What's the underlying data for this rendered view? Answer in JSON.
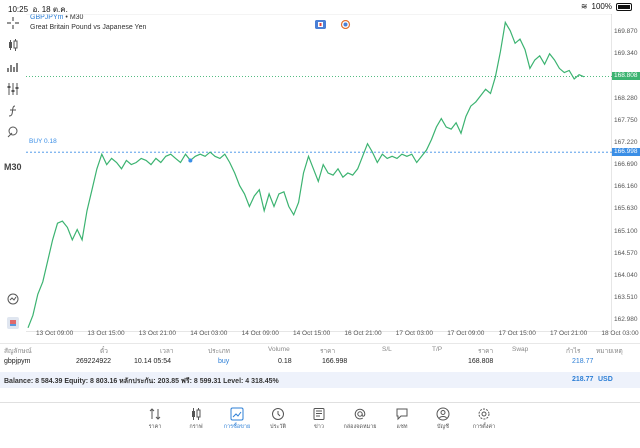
{
  "status_bar": {
    "time": "10:25",
    "date": "อ. 18 ต.ค.",
    "battery": "100%"
  },
  "chart": {
    "symbol": "GBPJPYm",
    "timeframe": "M30",
    "symbol_sep": "•",
    "description": "Great Britain Pound vs Japanese Yen",
    "timeframe_label": "M30",
    "buy_label": "BUY 0.18",
    "current_price": "168.808",
    "entry_price": "166.998",
    "colors": {
      "line": "#3cb371",
      "buy": "#3a8ee6",
      "current": "#3cb371"
    }
  },
  "chart_data": {
    "type": "line",
    "x_ticks": [
      "13 Oct 09:00",
      "13 Oct 15:00",
      "13 Oct 21:00",
      "14 Oct 03:00",
      "14 Oct 09:00",
      "14 Oct 15:00",
      "16 Oct 21:00",
      "17 Oct 03:00",
      "17 Oct 09:00",
      "17 Oct 15:00",
      "17 Oct 21:00",
      "18 Oct 03:00"
    ],
    "y_ticks": [
      "169.870",
      "169.340",
      "168.808",
      "168.280",
      "167.750",
      "167.220",
      "166.998",
      "166.690",
      "166.160",
      "165.630",
      "165.100",
      "164.570",
      "164.040",
      "163.510",
      "162.980"
    ],
    "ylim": [
      162.7,
      170.3
    ],
    "values": [
      162.8,
      163.1,
      163.6,
      163.9,
      164.4,
      164.9,
      165.3,
      165.35,
      165.2,
      164.9,
      165.15,
      164.9,
      165.6,
      166.1,
      166.6,
      166.95,
      166.7,
      166.85,
      166.75,
      166.6,
      166.8,
      166.7,
      166.75,
      166.85,
      166.8,
      166.7,
      166.85,
      166.75,
      166.9,
      166.95,
      166.85,
      166.75,
      166.95,
      166.8,
      166.9,
      166.95,
      166.9,
      167.0,
      166.9,
      166.85,
      166.95,
      166.75,
      166.5,
      166.2,
      166.0,
      165.7,
      165.95,
      166.1,
      165.6,
      166.0,
      165.7,
      166.0,
      166.05,
      165.7,
      165.5,
      165.8,
      166.5,
      166.9,
      166.6,
      166.3,
      166.7,
      166.5,
      166.45,
      166.6,
      166.4,
      166.5,
      166.45,
      166.6,
      166.9,
      167.2,
      167.0,
      166.75,
      166.95,
      166.85,
      166.9,
      166.85,
      166.95,
      166.9,
      166.95,
      166.75,
      166.9,
      167.05,
      167.3,
      167.6,
      167.8,
      167.6,
      167.55,
      167.7,
      167.45,
      167.85,
      168.1,
      168.2,
      168.35,
      168.5,
      168.4,
      168.8,
      169.4,
      170.1,
      169.9,
      169.6,
      169.7,
      169.45,
      169.0,
      169.2,
      169.3,
      169.1,
      169.35,
      169.2,
      169.0,
      168.9,
      168.95,
      168.75,
      168.85,
      168.8
    ]
  },
  "table": {
    "headers": [
      "สัญลักษณ์",
      "ตั๋ว",
      "เวลา",
      "ประเภท",
      "Volume",
      "ราคา",
      "S/L",
      "T/P",
      "ราคา",
      "Swap",
      "กำไร",
      "หมายเหตุ"
    ],
    "row": {
      "symbol": "gbpjpym",
      "ticket": "269224922",
      "time": "10.14 05:54",
      "type": "buy",
      "volume": "0.18",
      "open_price": "166.998",
      "current_price": "168.808",
      "profit": "218.77"
    },
    "balance_text": "Balance: 8 584.39 Equity: 8 803.16 หลักประกัน: 203.85 ฟรี: 8 599.31 Level: 4 318.45%",
    "balance_profit": "218.77",
    "currency": "USD"
  },
  "nav": [
    {
      "label": "ราคา",
      "icon": "quotes-icon"
    },
    {
      "label": "กราฟ",
      "icon": "chart-icon"
    },
    {
      "label": "การซื้อขาย",
      "icon": "trade-icon",
      "active": true
    },
    {
      "label": "ประวัติ",
      "icon": "history-icon"
    },
    {
      "label": "ข่าว",
      "icon": "news-icon"
    },
    {
      "label": "กล่องจดหมาย",
      "icon": "mailbox-icon"
    },
    {
      "label": "แชท",
      "icon": "chat-icon"
    },
    {
      "label": "บัญชี",
      "icon": "account-icon"
    },
    {
      "label": "การตั้งค่า",
      "icon": "settings-icon"
    }
  ]
}
